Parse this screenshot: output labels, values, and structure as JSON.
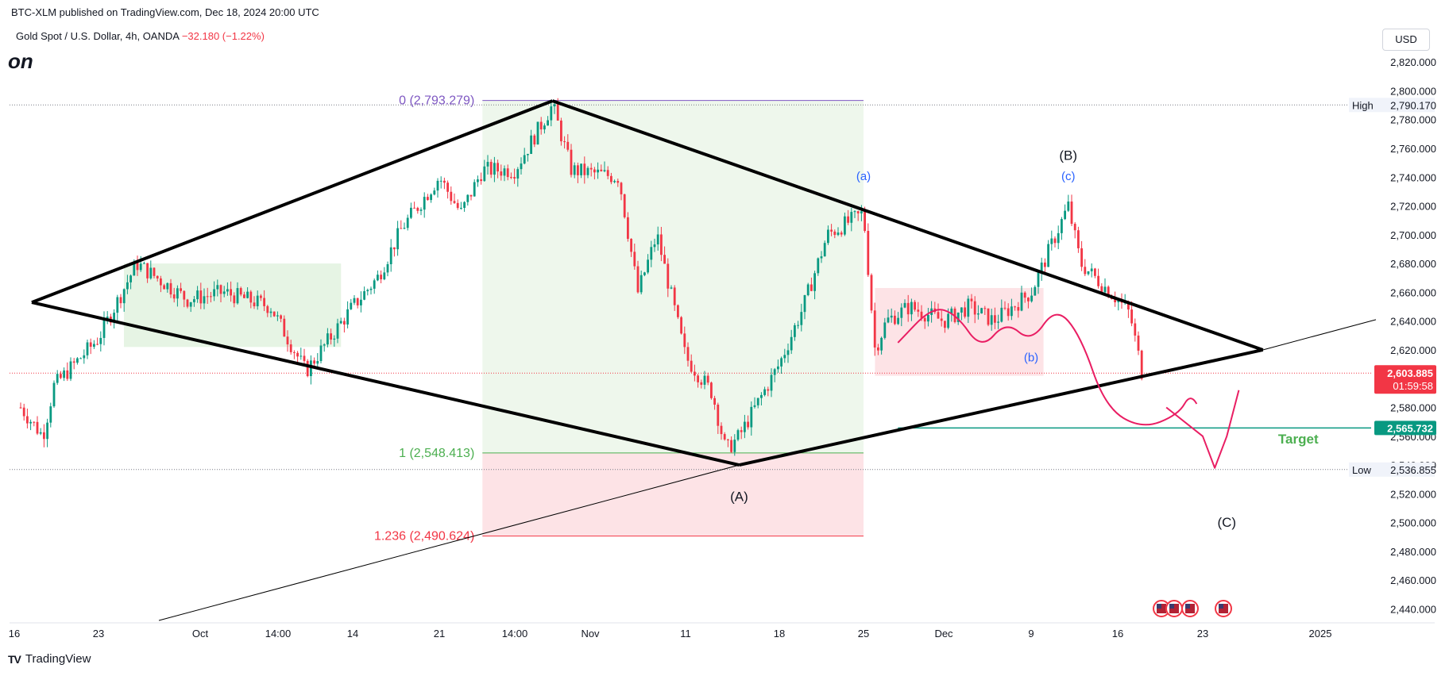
{
  "header": {
    "published": "BTC-XLM published on TradingView.com, Dec 18, 2024 20:00 UTC",
    "symbol": "Gold Spot / U.S. Dollar, 4h, OANDA",
    "change": "−32.180 (−1.22%)",
    "title_fragment": "on"
  },
  "currency_button": "USD",
  "footer": {
    "logo": "TV",
    "brand": "TradingView"
  },
  "colors": {
    "up": "#089981",
    "down": "#f23645",
    "fib0": "#7e57c2",
    "fib1": "#4caf50",
    "fib1236": "#f23645",
    "target_line": "#089981",
    "pattern": "#000000",
    "projection": "#e91e63",
    "green_zone": "#e6f4e4",
    "red_zone": "#fde3e6"
  },
  "icons": [
    "us-flag-icon",
    "us-flag-icon",
    "us-flag-icon",
    "us-flag-icon"
  ],
  "chart_data": {
    "type": "candlestick",
    "symbol": "Gold Spot / U.S. Dollar",
    "timeframe": "4h",
    "ylim": [
      2432,
      2830
    ],
    "y_ticks": [
      2820,
      2800,
      2780,
      2760,
      2740,
      2720,
      2700,
      2680,
      2660,
      2640,
      2620,
      2600,
      2580,
      2560,
      2540,
      2520,
      2500,
      2480,
      2460,
      2440
    ],
    "y_tick_labels": [
      "2,820.000",
      "2,800.000",
      "2,780.000",
      "2,760.000",
      "2,740.000",
      "2,720.000",
      "2,700.000",
      "2,680.000",
      "2,660.000",
      "2,640.000",
      "2,620.000",
      "2,600.000",
      "2,580.000",
      "2,560.000",
      "2,540.000",
      "2,520.000",
      "2,500.000",
      "2,480.000",
      "2,460.000",
      "2,440.000"
    ],
    "x_tick_labels": [
      "16",
      "23",
      "Oct",
      "14:00",
      "14",
      "21",
      "14:00",
      "Nov",
      "11",
      "18",
      "25",
      "Dec",
      "9",
      "16",
      "23",
      "2025"
    ],
    "price_path": [
      [
        "2024-09-16",
        2580
      ],
      [
        "2024-09-18",
        2560
      ],
      [
        "2024-09-19",
        2595
      ],
      [
        "2024-09-23",
        2628
      ],
      [
        "2024-09-26",
        2680
      ],
      [
        "2024-09-30",
        2655
      ],
      [
        "2024-10-03",
        2660
      ],
      [
        "2024-10-07",
        2650
      ],
      [
        "2024-10-10",
        2605
      ],
      [
        "2024-10-14",
        2650
      ],
      [
        "2024-10-16",
        2670
      ],
      [
        "2024-10-18",
        2705
      ],
      [
        "2024-10-21",
        2740
      ],
      [
        "2024-10-23",
        2715
      ],
      [
        "2024-10-25",
        2745
      ],
      [
        "2024-10-28",
        2745
      ],
      [
        "2024-10-30",
        2790
      ],
      [
        "2024-10-31",
        2745
      ],
      [
        "2024-11-04",
        2740
      ],
      [
        "2024-11-06",
        2660
      ],
      [
        "2024-11-08",
        2700
      ],
      [
        "2024-11-11",
        2615
      ],
      [
        "2024-11-13",
        2590
      ],
      [
        "2024-11-14",
        2550
      ],
      [
        "2024-11-15",
        2560
      ],
      [
        "2024-11-18",
        2610
      ],
      [
        "2024-11-20",
        2650
      ],
      [
        "2024-11-22",
        2700
      ],
      [
        "2024-11-25",
        2715
      ],
      [
        "2024-11-26",
        2620
      ],
      [
        "2024-11-27",
        2640
      ],
      [
        "2024-11-29",
        2650
      ],
      [
        "2024-12-02",
        2640
      ],
      [
        "2024-12-04",
        2650
      ],
      [
        "2024-12-06",
        2640
      ],
      [
        "2024-12-09",
        2660
      ],
      [
        "2024-12-11",
        2700
      ],
      [
        "2024-12-12",
        2720
      ],
      [
        "2024-12-13",
        2680
      ],
      [
        "2024-12-16",
        2655
      ],
      [
        "2024-12-17",
        2645
      ],
      [
        "2024-12-18",
        2604
      ]
    ],
    "last_price": {
      "label": "2,603.885",
      "countdown": "01:59:58",
      "value": 2603.885
    },
    "target_price": {
      "label": "2,565.732",
      "value": 2565.732
    },
    "high": {
      "tag": "High",
      "label": "2,790.170",
      "value": 2790.17
    },
    "low": {
      "tag": "Low",
      "label": "2,536.855",
      "value": 2536.855
    },
    "fib_levels": [
      {
        "label": "0 (2,793.279)",
        "value": 2793.279
      },
      {
        "label": "1 (2,548.413)",
        "value": 2548.413
      },
      {
        "label": "1.236 (2,490.624)",
        "value": 2490.624
      }
    ],
    "wave_labels": [
      {
        "text": "(a)",
        "at": [
          "2024-11-25",
          2738
        ]
      },
      {
        "text": "(b)",
        "at": [
          "2024-12-09",
          2612
        ]
      },
      {
        "text": "(c)",
        "at": [
          "2024-12-12",
          2738
        ]
      },
      {
        "text": "(A)",
        "at": [
          "2024-11-15",
          2515
        ]
      },
      {
        "text": "(B)",
        "at": [
          "2024-12-12",
          2752
        ]
      },
      {
        "text": "(C)",
        "at": [
          "2024-12-25",
          2497
        ]
      }
    ],
    "annotations": [
      "Target"
    ],
    "pattern_lines": [
      {
        "from": [
          "2024-09-17",
          2653
        ],
        "to": [
          "2024-10-30",
          2793
        ]
      },
      {
        "from": [
          "2024-10-30",
          2793
        ],
        "to": [
          "2024-12-28",
          2620
        ]
      },
      {
        "from": [
          "2024-09-17",
          2653
        ],
        "to": [
          "2024-11-15",
          2540
        ]
      },
      {
        "from": [
          "2024-11-15",
          2540
        ],
        "to": [
          "2024-12-28",
          2620
        ]
      }
    ]
  }
}
